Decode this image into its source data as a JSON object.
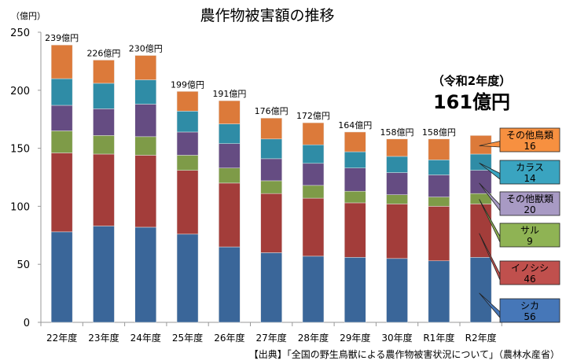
{
  "chart_data": {
    "type": "bar",
    "stacked": true,
    "title": "農作物被害額の推移",
    "ylabel": "（億円）",
    "ylim": [
      0,
      250
    ],
    "yticks": [
      0,
      50,
      100,
      150,
      200,
      250
    ],
    "grid": false,
    "categories": [
      "22年度",
      "23年度",
      "24年度",
      "25年度",
      "26年度",
      "27年度",
      "28年度",
      "29年度",
      "30年度",
      "R1年度",
      "R2年度"
    ],
    "totals": [
      239,
      226,
      230,
      199,
      191,
      176,
      172,
      164,
      158,
      158,
      161
    ],
    "total_labels": [
      "239億円",
      "226億円",
      "230億円",
      "199億円",
      "191億円",
      "176億円",
      "172億円",
      "164億円",
      "158億円",
      "158億円",
      ""
    ],
    "series": [
      {
        "name": "シカ",
        "color": "#3a6699",
        "legend_color": "#4677b8",
        "values": [
          78,
          83,
          82,
          76,
          65,
          60,
          57,
          56,
          55,
          53,
          56
        ]
      },
      {
        "name": "イノシシ",
        "color": "#a33d3a",
        "legend_color": "#c0504d",
        "values": [
          68,
          62,
          62,
          55,
          55,
          51,
          50,
          47,
          47,
          47,
          46
        ]
      },
      {
        "name": "サル",
        "color": "#7e9b48",
        "legend_color": "#8fb354",
        "values": [
          19,
          16,
          16,
          13,
          13,
          11,
          11,
          10,
          8,
          8,
          9
        ]
      },
      {
        "name": "その他獣類",
        "color": "#654c82",
        "legend_color": "#a89ac4",
        "values": [
          22,
          23,
          28,
          20,
          21,
          19,
          19,
          20,
          19,
          19,
          20
        ]
      },
      {
        "name": "カラス",
        "color": "#2f8ca6",
        "legend_color": "#3aa4c0",
        "values": [
          23,
          22,
          21,
          18,
          17,
          17,
          16,
          14,
          14,
          13,
          14
        ]
      },
      {
        "name": "その他鳥類",
        "color": "#dc7a3a",
        "legend_color": "#f79040",
        "values": [
          29,
          20,
          21,
          17,
          20,
          18,
          19,
          17,
          15,
          18,
          16
        ]
      }
    ],
    "legend_placement": "right",
    "highlight": {
      "period": "（令和2年度）",
      "total": "161億円"
    },
    "source": "【出典】「全国の野生鳥獣による農作物被害状況について」（農林水産省）"
  }
}
